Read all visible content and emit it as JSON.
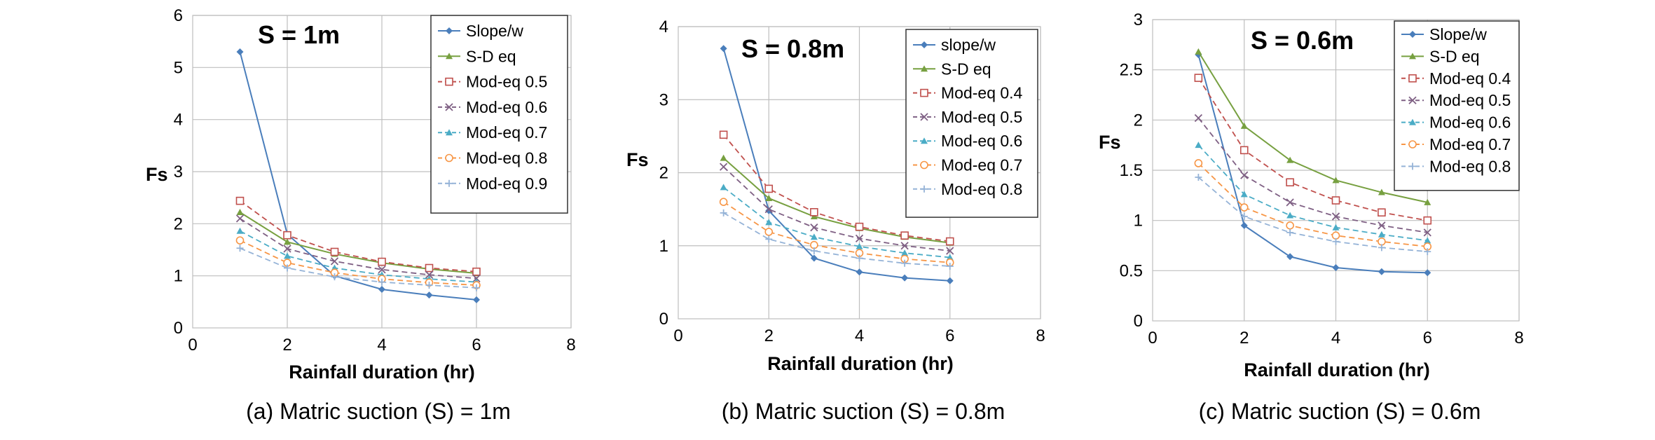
{
  "chart_data": [
    {
      "type": "line",
      "panel_label": "S = 1m",
      "caption": "(a) Matric suction (S) = 1m",
      "xlabel": "Rainfall duration (hr)",
      "ylabel": "Fs",
      "xlim": [
        0,
        8
      ],
      "ylim": [
        0,
        6
      ],
      "xticks": [
        0,
        2,
        4,
        6,
        8
      ],
      "yticks": [
        0,
        1,
        2,
        3,
        4,
        5,
        6
      ],
      "grid": true,
      "legend_position": "top-right",
      "x": [
        1,
        2,
        3,
        4,
        5,
        6
      ],
      "series": [
        {
          "name": "Slope/w",
          "color": "#4a7ebb",
          "marker": "diamond",
          "dash": "solid",
          "values": [
            5.3,
            1.8,
            1.0,
            0.74,
            0.63,
            0.54
          ]
        },
        {
          "name": "S-D eq",
          "color": "#77a040",
          "marker": "triangle",
          "dash": "solid",
          "values": [
            2.22,
            1.65,
            1.42,
            1.25,
            1.13,
            1.05
          ]
        },
        {
          "name": "Mod-eq 0.5",
          "color": "#c0504d",
          "marker": "square",
          "dash": "dashed",
          "values": [
            2.44,
            1.78,
            1.46,
            1.27,
            1.15,
            1.08
          ]
        },
        {
          "name": "Mod-eq 0.6",
          "color": "#7f6084",
          "marker": "cross",
          "dash": "dashed",
          "values": [
            2.1,
            1.52,
            1.28,
            1.12,
            1.02,
            0.95
          ]
        },
        {
          "name": "Mod-eq 0.7",
          "color": "#4bacc6",
          "marker": "triangle",
          "dash": "dashed",
          "values": [
            1.86,
            1.38,
            1.15,
            1.02,
            0.94,
            0.88
          ]
        },
        {
          "name": "Mod-eq 0.8",
          "color": "#f79646",
          "marker": "circle",
          "dash": "dashed",
          "values": [
            1.68,
            1.25,
            1.06,
            0.94,
            0.87,
            0.82
          ]
        },
        {
          "name": "Mod-eq 0.9",
          "color": "#95b3d7",
          "marker": "plus",
          "dash": "dashed",
          "values": [
            1.53,
            1.15,
            0.98,
            0.88,
            0.82,
            0.77
          ]
        }
      ]
    },
    {
      "type": "line",
      "panel_label": "S = 0.8m",
      "caption": "(b) Matric suction (S) = 0.8m",
      "xlabel": "Rainfall duration (hr)",
      "ylabel": "Fs",
      "xlim": [
        0,
        8
      ],
      "ylim": [
        0,
        4
      ],
      "xticks": [
        0,
        2,
        4,
        6,
        8
      ],
      "yticks": [
        0,
        1,
        2,
        3,
        4
      ],
      "grid": true,
      "legend_position": "top-right",
      "x": [
        1,
        2,
        3,
        4,
        5,
        6
      ],
      "series": [
        {
          "name": "slope/w",
          "color": "#4a7ebb",
          "marker": "diamond",
          "dash": "solid",
          "values": [
            3.7,
            1.48,
            0.83,
            0.64,
            0.56,
            0.52
          ]
        },
        {
          "name": "S-D eq",
          "color": "#77a040",
          "marker": "triangle",
          "dash": "solid",
          "values": [
            2.2,
            1.65,
            1.4,
            1.24,
            1.12,
            1.04
          ]
        },
        {
          "name": "Mod-eq 0.4",
          "color": "#c0504d",
          "marker": "square",
          "dash": "dashed",
          "values": [
            2.52,
            1.78,
            1.46,
            1.26,
            1.14,
            1.06
          ]
        },
        {
          "name": "Mod-eq 0.5",
          "color": "#7f6084",
          "marker": "cross",
          "dash": "dashed",
          "values": [
            2.08,
            1.5,
            1.25,
            1.1,
            1.0,
            0.93
          ]
        },
        {
          "name": "Mod-eq 0.6",
          "color": "#4bacc6",
          "marker": "triangle",
          "dash": "dashed",
          "values": [
            1.8,
            1.32,
            1.12,
            0.99,
            0.9,
            0.84
          ]
        },
        {
          "name": "Mod-eq 0.7",
          "color": "#f79646",
          "marker": "circle",
          "dash": "dashed",
          "values": [
            1.6,
            1.19,
            1.01,
            0.9,
            0.82,
            0.77
          ]
        },
        {
          "name": "Mod-eq 0.8",
          "color": "#95b3d7",
          "marker": "plus",
          "dash": "dashed",
          "values": [
            1.45,
            1.09,
            0.93,
            0.83,
            0.76,
            0.72
          ]
        }
      ]
    },
    {
      "type": "line",
      "panel_label": "S = 0.6m",
      "caption": "(c) Matric suction (S) = 0.6m",
      "xlabel": "Rainfall duration (hr)",
      "ylabel": "Fs",
      "xlim": [
        0,
        8
      ],
      "ylim": [
        0,
        3
      ],
      "xticks": [
        0,
        2,
        4,
        6,
        8
      ],
      "yticks": [
        0,
        0.5,
        1,
        1.5,
        2,
        2.5,
        3
      ],
      "grid": true,
      "legend_position": "top-right",
      "x": [
        1,
        2,
        3,
        4,
        5,
        6
      ],
      "series": [
        {
          "name": "Slope/w",
          "color": "#4a7ebb",
          "marker": "diamond",
          "dash": "solid",
          "values": [
            2.65,
            0.95,
            0.64,
            0.53,
            0.49,
            0.48
          ]
        },
        {
          "name": "S-D eq",
          "color": "#77a040",
          "marker": "triangle",
          "dash": "solid",
          "values": [
            2.68,
            1.94,
            1.6,
            1.4,
            1.28,
            1.18
          ]
        },
        {
          "name": "Mod-eq 0.4",
          "color": "#c0504d",
          "marker": "square",
          "dash": "dashed",
          "values": [
            2.42,
            1.7,
            1.38,
            1.2,
            1.08,
            1.0
          ]
        },
        {
          "name": "Mod-eq 0.5",
          "color": "#7f6084",
          "marker": "cross",
          "dash": "dashed",
          "values": [
            2.02,
            1.45,
            1.18,
            1.04,
            0.95,
            0.88
          ]
        },
        {
          "name": "Mod-eq 0.6",
          "color": "#4bacc6",
          "marker": "triangle",
          "dash": "dashed",
          "values": [
            1.75,
            1.26,
            1.05,
            0.93,
            0.86,
            0.8
          ]
        },
        {
          "name": "Mod-eq 0.7",
          "color": "#f79646",
          "marker": "circle",
          "dash": "dashed",
          "values": [
            1.57,
            1.13,
            0.95,
            0.85,
            0.79,
            0.74
          ]
        },
        {
          "name": "Mod-eq 0.8",
          "color": "#95b3d7",
          "marker": "plus",
          "dash": "dashed",
          "values": [
            1.43,
            1.04,
            0.88,
            0.79,
            0.73,
            0.69
          ]
        }
      ]
    }
  ]
}
